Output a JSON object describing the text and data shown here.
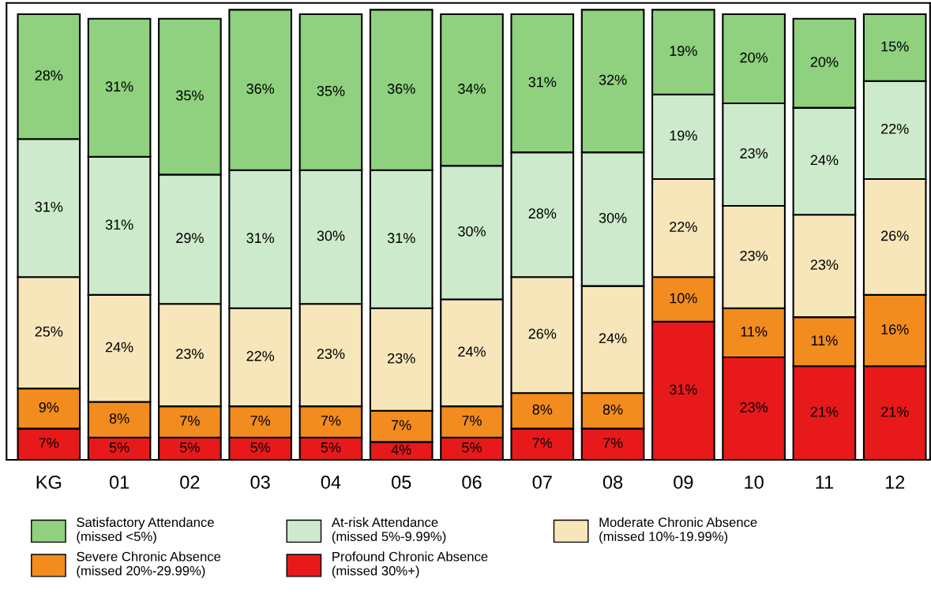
{
  "chart_data": {
    "type": "bar",
    "stacked": true,
    "tick_labels": "x",
    "legend": "bottom",
    "categories": [
      "KG",
      "01",
      "02",
      "03",
      "04",
      "05",
      "06",
      "07",
      "08",
      "09",
      "10",
      "11",
      "12"
    ],
    "series": [
      {
        "name": "Profound Chronic Absence\n(missed 30%+)",
        "color": "#e8191b",
        "values": [
          7,
          5,
          5,
          5,
          5,
          4,
          5,
          7,
          7,
          31,
          23,
          21,
          21
        ],
        "value_labels": [
          "7%",
          "5%",
          "5%",
          "5%",
          "5%",
          "4%",
          "5%",
          "7%",
          "7%",
          "31%",
          "23%",
          "21%",
          "21%"
        ]
      },
      {
        "name": "Severe Chronic Absence\n(missed 20%-29.99%)",
        "color": "#f28c1e",
        "values": [
          9,
          8,
          7,
          7,
          7,
          7,
          7,
          8,
          8,
          10,
          11,
          11,
          16
        ],
        "value_labels": [
          "9%",
          "8%",
          "7%",
          "7%",
          "7%",
          "7%",
          "7%",
          "8%",
          "8%",
          "10%",
          "11%",
          "11%",
          "16%"
        ]
      },
      {
        "name": "Moderate Chronic Absence\n(missed 10%-19.99%)",
        "color": "#f8e6bb",
        "values": [
          25,
          24,
          23,
          22,
          23,
          23,
          24,
          26,
          24,
          22,
          23,
          23,
          26
        ],
        "value_labels": [
          "25%",
          "24%",
          "23%",
          "22%",
          "23%",
          "23%",
          "24%",
          "26%",
          "24%",
          "22%",
          "23%",
          "23%",
          "26%"
        ]
      },
      {
        "name": "At-risk Attendance\n(missed 5%-9.99%)",
        "color": "#cdebcc",
        "values": [
          31,
          31,
          29,
          31,
          30,
          31,
          30,
          28,
          30,
          19,
          23,
          24,
          22
        ],
        "value_labels": [
          "31%",
          "31%",
          "29%",
          "31%",
          "30%",
          "31%",
          "30%",
          "28%",
          "30%",
          "19%",
          "23%",
          "24%",
          "22%"
        ]
      },
      {
        "name": "Satisfactory Attendance\n(missed <5%)",
        "color": "#8fd17f",
        "values": [
          28,
          31,
          35,
          36,
          35,
          36,
          34,
          31,
          32,
          19,
          20,
          20,
          15
        ],
        "value_labels": [
          "28%",
          "31%",
          "35%",
          "36%",
          "35%",
          "36%",
          "34%",
          "31%",
          "32%",
          "19%",
          "20%",
          "20%",
          "15%"
        ]
      }
    ]
  }
}
